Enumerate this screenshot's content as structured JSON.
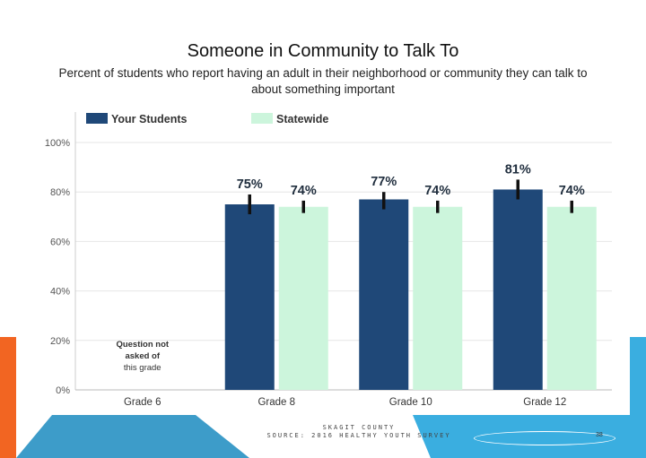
{
  "slide": {
    "title": "Someone in Community to Talk To",
    "subtitle": "Percent of students who report having an adult in their neighborhood or community they can talk to about something important",
    "footer_line1": "SKAGIT COUNTY",
    "footer_line2": "SOURCE: 2016 HEALTHY YOUTH SURVEY",
    "page_number": "38"
  },
  "colors": {
    "your_students": "#1f4878",
    "statewide": "#ccf5dc",
    "error_bar": "#111111",
    "grid": "#e6e6e6",
    "axis_text": "#555555",
    "orange_accent": "#f26522",
    "blue_accent": "#3aaee0"
  },
  "chart_data": {
    "type": "bar",
    "categories": [
      "Grade 6",
      "Grade 8",
      "Grade 10",
      "Grade 12"
    ],
    "series": [
      {
        "name": "Your Students",
        "values": [
          null,
          75,
          77,
          81
        ],
        "labels": [
          "",
          "75%",
          "77%",
          "81%"
        ],
        "error_low": [
          null,
          71,
          73,
          77
        ],
        "error_high": [
          null,
          79,
          80,
          85
        ]
      },
      {
        "name": "Statewide",
        "values": [
          null,
          74,
          74,
          74
        ],
        "labels": [
          "",
          "74%",
          "74%",
          "74%"
        ],
        "error_low": [
          null,
          71.5,
          71.5,
          71.5
        ],
        "error_high": [
          null,
          76.5,
          76.5,
          76.5
        ]
      }
    ],
    "yticks": [
      "0%",
      "20%",
      "40%",
      "60%",
      "80%",
      "100%"
    ],
    "ylim": [
      0,
      100
    ],
    "legend_position": "top",
    "grid": true,
    "annotation": "Question not asked of this grade"
  }
}
